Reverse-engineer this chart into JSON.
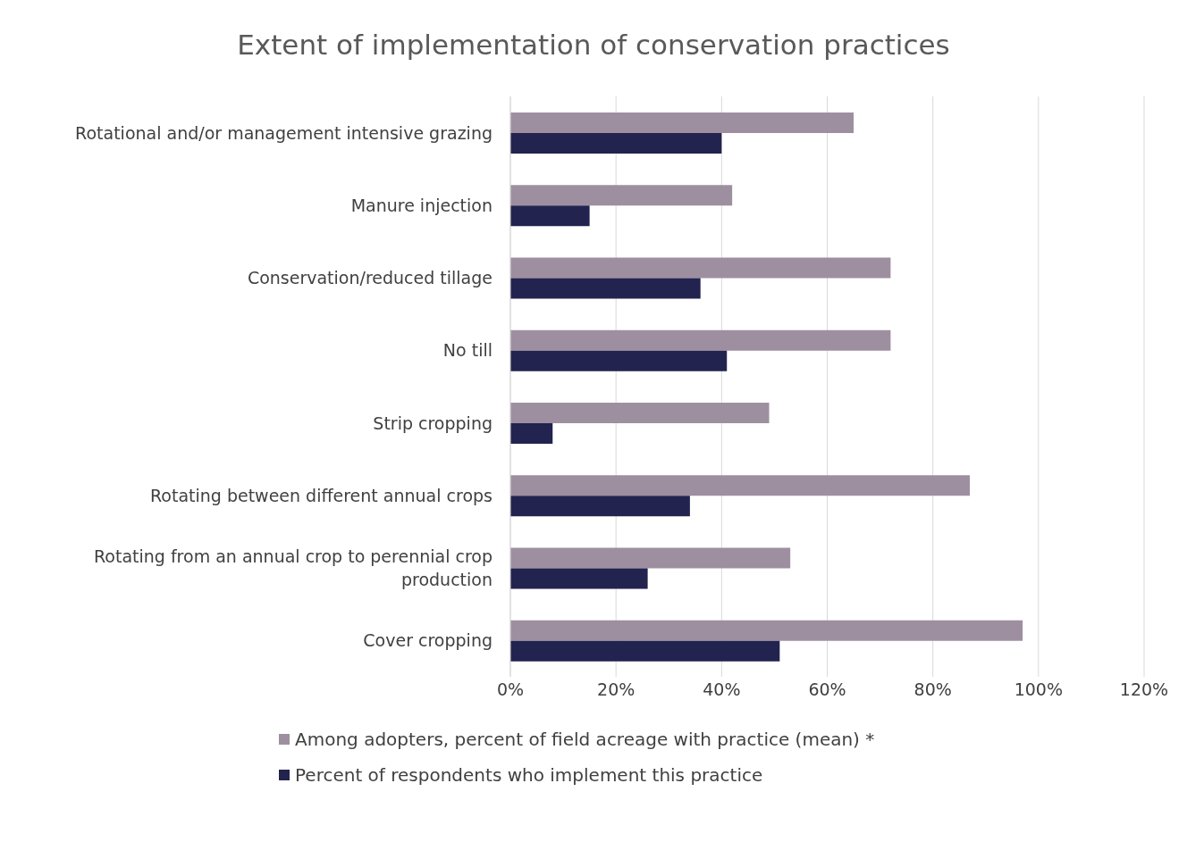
{
  "chart_data": {
    "type": "bar",
    "orientation": "horizontal",
    "title": "Extent of implementation of conservation practices",
    "categories": [
      "Rotational and/or management intensive grazing",
      "Manure injection",
      "Conservation/reduced tillage",
      "No till",
      "Strip cropping",
      "Rotating between different annual crops",
      "Rotating from an annual crop to perennial crop production",
      "Cover cropping"
    ],
    "series": [
      {
        "name": "Among adopters, percent of field acreage with practice (mean) *",
        "color": "#9e8fa0",
        "values": [
          65,
          42,
          72,
          72,
          49,
          87,
          53,
          97
        ]
      },
      {
        "name": "Percent of respondents who implement this practice",
        "color": "#23234f",
        "values": [
          40,
          15,
          36,
          41,
          8,
          34,
          26,
          51
        ]
      }
    ],
    "xlim": [
      0,
      120
    ],
    "xticks": [
      {
        "value": 0,
        "label": "0%"
      },
      {
        "value": 20,
        "label": "20%"
      },
      {
        "value": 40,
        "label": "40%"
      },
      {
        "value": 60,
        "label": "60%"
      },
      {
        "value": 80,
        "label": "80%"
      },
      {
        "value": 100,
        "label": "100%"
      },
      {
        "value": 120,
        "label": "120%"
      }
    ],
    "grid": "x",
    "legend": "bottom"
  }
}
